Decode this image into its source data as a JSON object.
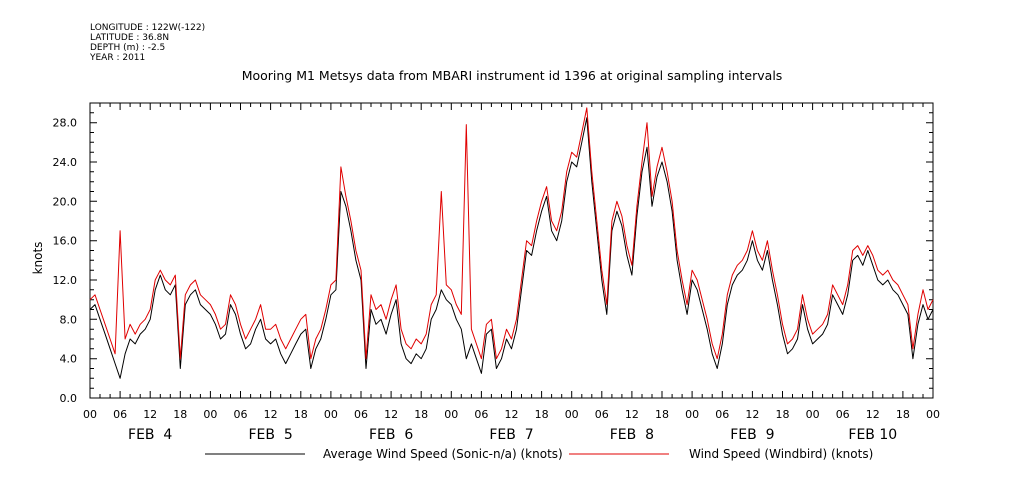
{
  "header": {
    "longitude": "LONGITUDE : 122W(-122)",
    "latitude": "LATITUDE : 36.8N",
    "depth": "DEPTH (m) : -2.5",
    "year": "YEAR : 2011"
  },
  "chart_data": {
    "type": "line",
    "title": "Mooring M1 Metsys data from MBARI instrument id 1396 at original sampling intervals",
    "xlabel": "",
    "ylabel": "knots",
    "ylim": [
      0,
      30
    ],
    "xlim": [
      0,
      168
    ],
    "x_unit": "hours from FEB 4 00:00 (2011)",
    "yticks": [
      "0.0",
      "4.0",
      "8.0",
      "12.0",
      "16.0",
      "20.0",
      "24.0",
      "28.0"
    ],
    "xtick_labels": [
      "00",
      "06",
      "12",
      "18",
      "00",
      "06",
      "12",
      "18",
      "00",
      "06",
      "12",
      "18",
      "00",
      "06",
      "12",
      "18",
      "00",
      "06",
      "12",
      "18",
      "00",
      "06",
      "12",
      "18",
      "00",
      "06",
      "12",
      "18",
      "00"
    ],
    "day_labels": [
      "FEB  4",
      "FEB  5",
      "FEB  6",
      "FEB  7",
      "FEB  8",
      "FEB  9",
      "FEB 10"
    ],
    "grid": false,
    "legend": "bottom",
    "series": [
      {
        "name": "Average Wind Speed (Sonic-n/a) (knots)",
        "color": "#000000",
        "x": [
          0,
          1,
          2,
          3,
          4,
          5,
          6,
          7,
          8,
          9,
          10,
          11,
          12,
          13,
          14,
          15,
          16,
          17,
          18,
          19,
          20,
          21,
          22,
          23,
          24,
          25,
          26,
          27,
          28,
          29,
          30,
          31,
          32,
          33,
          34,
          35,
          36,
          37,
          38,
          39,
          40,
          41,
          42,
          43,
          44,
          45,
          46,
          47,
          48,
          49,
          50,
          51,
          52,
          53,
          54,
          55,
          56,
          57,
          58,
          59,
          60,
          61,
          62,
          63,
          64,
          65,
          66,
          67,
          68,
          69,
          70,
          71,
          72,
          73,
          74,
          75,
          76,
          77,
          78,
          79,
          80,
          81,
          82,
          83,
          84,
          85,
          86,
          87,
          88,
          89,
          90,
          91,
          92,
          93,
          94,
          95,
          96,
          97,
          98,
          99,
          100,
          101,
          102,
          103,
          104,
          105,
          106,
          107,
          108,
          109,
          110,
          111,
          112,
          113,
          114,
          115,
          116,
          117,
          118,
          119,
          120,
          121,
          122,
          123,
          124,
          125,
          126,
          127,
          128,
          129,
          130,
          131,
          132,
          133,
          134,
          135,
          136,
          137,
          138,
          139,
          140,
          141,
          142,
          143,
          144,
          145,
          146,
          147,
          148,
          149,
          150,
          151,
          152,
          153,
          154,
          155,
          156,
          157,
          158,
          159,
          160,
          161,
          162,
          163,
          164,
          165,
          166,
          167,
          168
        ],
        "values": [
          9.0,
          9.5,
          8.0,
          6.5,
          5.0,
          3.5,
          2.0,
          4.5,
          6.0,
          5.5,
          6.5,
          7.0,
          8.0,
          11.0,
          12.5,
          11.0,
          10.5,
          11.5,
          3.0,
          9.5,
          10.5,
          11.0,
          9.5,
          9.0,
          8.5,
          7.5,
          6.0,
          6.5,
          9.5,
          8.5,
          6.5,
          5.0,
          5.5,
          7.0,
          8.0,
          6.0,
          5.5,
          6.0,
          4.5,
          3.5,
          4.5,
          5.5,
          6.5,
          7.0,
          3.0,
          5.0,
          6.0,
          8.0,
          10.5,
          11.0,
          21.0,
          19.5,
          17.0,
          14.0,
          12.0,
          3.0,
          9.0,
          7.5,
          8.0,
          6.5,
          8.5,
          10.0,
          5.5,
          4.0,
          3.5,
          4.5,
          4.0,
          5.0,
          8.0,
          9.0,
          11.0,
          10.0,
          9.5,
          8.0,
          7.0,
          4.0,
          5.5,
          4.0,
          2.5,
          6.5,
          7.0,
          3.0,
          4.0,
          6.0,
          5.0,
          7.0,
          11.0,
          15.0,
          14.5,
          17.0,
          19.0,
          20.5,
          17.0,
          16.0,
          18.0,
          22.0,
          24.0,
          23.5,
          26.0,
          28.5,
          22.0,
          17.0,
          12.0,
          8.5,
          17.0,
          19.0,
          17.5,
          14.5,
          12.5,
          18.5,
          23.0,
          25.5,
          19.5,
          22.5,
          24.0,
          22.0,
          19.0,
          14.0,
          11.0,
          8.5,
          12.0,
          11.0,
          9.0,
          7.0,
          4.5,
          3.0,
          5.5,
          9.5,
          11.5,
          12.5,
          13.0,
          14.0,
          16.0,
          14.0,
          13.0,
          15.0,
          12.0,
          9.5,
          6.5,
          4.5,
          5.0,
          6.0,
          9.5,
          7.0,
          5.5,
          6.0,
          6.5,
          7.5,
          10.5,
          9.5,
          8.5,
          10.5,
          14.0,
          14.5,
          13.5,
          15.0,
          13.5,
          12.0,
          11.5,
          12.0,
          11.0,
          10.5,
          9.5,
          8.5,
          4.0,
          7.5,
          9.5,
          8.0,
          9.0
        ]
      },
      {
        "name": "Wind Speed (Windbird) (knots)",
        "color": "#e00000",
        "x": [
          0,
          1,
          2,
          3,
          4,
          5,
          6,
          7,
          8,
          9,
          10,
          11,
          12,
          13,
          14,
          15,
          16,
          17,
          18,
          19,
          20,
          21,
          22,
          23,
          24,
          25,
          26,
          27,
          28,
          29,
          30,
          31,
          32,
          33,
          34,
          35,
          36,
          37,
          38,
          39,
          40,
          41,
          42,
          43,
          44,
          45,
          46,
          47,
          48,
          49,
          50,
          51,
          52,
          53,
          54,
          55,
          56,
          57,
          58,
          59,
          60,
          61,
          62,
          63,
          64,
          65,
          66,
          67,
          68,
          69,
          70,
          71,
          72,
          73,
          74,
          75,
          76,
          77,
          78,
          79,
          80,
          81,
          82,
          83,
          84,
          85,
          86,
          87,
          88,
          89,
          90,
          91,
          92,
          93,
          94,
          95,
          96,
          97,
          98,
          99,
          100,
          101,
          102,
          103,
          104,
          105,
          106,
          107,
          108,
          109,
          110,
          111,
          112,
          113,
          114,
          115,
          116,
          117,
          118,
          119,
          120,
          121,
          122,
          123,
          124,
          125,
          126,
          127,
          128,
          129,
          130,
          131,
          132,
          133,
          134,
          135,
          136,
          137,
          138,
          139,
          140,
          141,
          142,
          143,
          144,
          145,
          146,
          147,
          148,
          149,
          150,
          151,
          152,
          153,
          154,
          155,
          156,
          157,
          158,
          159,
          160,
          161,
          162,
          163,
          164,
          165,
          166,
          167,
          168
        ],
        "values": [
          10.0,
          10.5,
          9.0,
          7.5,
          6.0,
          4.5,
          17.0,
          6.0,
          7.5,
          6.5,
          7.5,
          8.0,
          9.0,
          12.0,
          13.0,
          12.0,
          11.5,
          12.5,
          4.0,
          10.5,
          11.5,
          12.0,
          10.5,
          10.0,
          9.5,
          8.5,
          7.0,
          7.5,
          10.5,
          9.5,
          7.5,
          6.0,
          7.0,
          8.0,
          9.5,
          7.0,
          7.0,
          7.5,
          6.0,
          5.0,
          6.0,
          7.0,
          8.0,
          8.5,
          4.0,
          6.0,
          7.0,
          9.0,
          11.5,
          12.0,
          23.5,
          20.5,
          18.0,
          15.0,
          13.0,
          4.0,
          10.5,
          9.0,
          9.5,
          8.0,
          10.0,
          11.5,
          7.0,
          5.5,
          5.0,
          6.0,
          5.5,
          6.5,
          9.5,
          10.5,
          21.0,
          11.5,
          11.0,
          9.5,
          8.5,
          27.8,
          7.0,
          5.5,
          4.0,
          7.5,
          8.0,
          4.0,
          5.0,
          7.0,
          6.0,
          8.0,
          12.0,
          16.0,
          15.5,
          18.0,
          20.0,
          21.5,
          18.0,
          17.0,
          19.0,
          23.0,
          25.0,
          24.5,
          27.0,
          29.5,
          23.0,
          18.0,
          13.0,
          9.5,
          18.0,
          20.0,
          18.5,
          15.5,
          13.5,
          19.5,
          24.0,
          28.0,
          20.5,
          23.5,
          25.5,
          23.0,
          20.0,
          15.0,
          12.0,
          9.5,
          13.0,
          12.0,
          10.0,
          8.0,
          5.5,
          4.0,
          6.5,
          10.5,
          12.5,
          13.5,
          14.0,
          15.0,
          17.0,
          15.0,
          14.0,
          16.0,
          13.0,
          10.5,
          7.5,
          5.5,
          6.0,
          7.0,
          10.5,
          8.0,
          6.5,
          7.0,
          7.5,
          8.5,
          11.5,
          10.5,
          9.5,
          11.5,
          15.0,
          15.5,
          14.5,
          15.5,
          14.5,
          13.0,
          12.5,
          13.0,
          12.0,
          11.5,
          10.5,
          9.5,
          5.0,
          8.5,
          11.0,
          9.0,
          10.0
        ]
      }
    ]
  }
}
